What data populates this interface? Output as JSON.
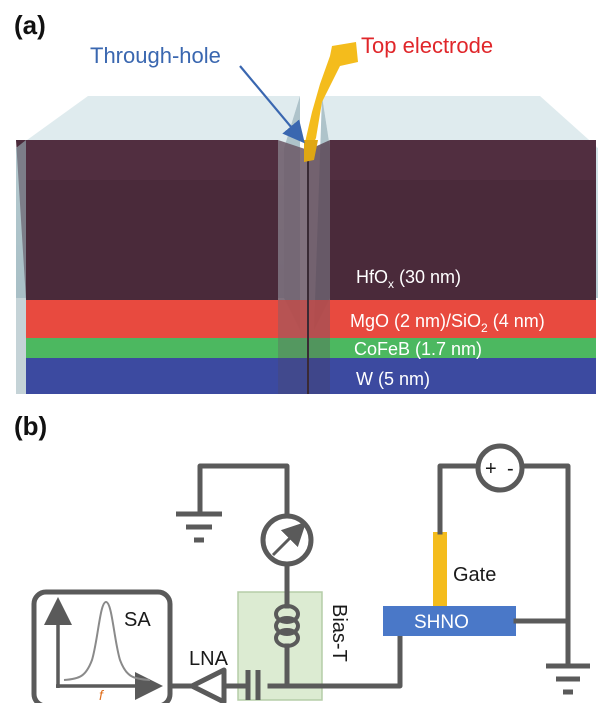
{
  "panel_a": {
    "label": "(a)",
    "through_hole": "Through-hole",
    "top_electrode": "Top electrode",
    "layers": {
      "hfox": {
        "main": "HfO",
        "sub": "x",
        "rest": " (30 nm)"
      },
      "mgo": {
        "main": "MgO (2 nm)/SiO",
        "sub": "2",
        "rest": " (4 nm)"
      },
      "cofeb": "CoFeB (1.7 nm)",
      "w": "W (5 nm)"
    },
    "colors": {
      "hfox": "#4a2a3a",
      "mgo": "#e84a3f",
      "cofeb": "#4cb860",
      "w": "#3c4aa0",
      "cap": "#c7dce2",
      "electrode": "#f4bc1c"
    }
  },
  "panel_b": {
    "label": "(b)",
    "sa": "SA",
    "freq_axis": "f",
    "lna": "LNA",
    "bias_t": "Bias-T",
    "shno": "SHNO",
    "gate": "Gate",
    "plus": "+",
    "minus": "-",
    "colors": {
      "wire": "#5a5a5a",
      "shno": "#4a78c8",
      "gate": "#f4bc1c",
      "bias_t_box": "#dcebd2",
      "freq": "#e07020"
    }
  }
}
